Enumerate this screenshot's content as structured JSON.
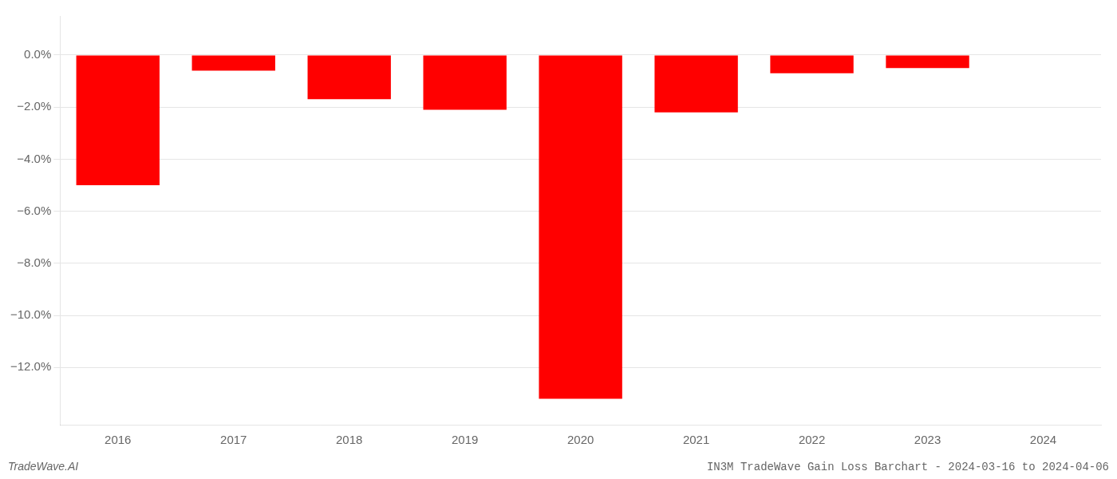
{
  "chart_data": {
    "type": "bar",
    "title": "IN3M TradeWave Gain Loss Barchart - 2024-03-16 to 2024-04-06",
    "annotations": [
      "TradeWave.AI"
    ],
    "categories": [
      "2016",
      "2017",
      "2018",
      "2019",
      "2020",
      "2021",
      "2022",
      "2023",
      "2024"
    ],
    "values": [
      -5.0,
      -0.6,
      -1.7,
      -2.1,
      -13.2,
      -2.2,
      -0.7,
      -0.5,
      0.0
    ],
    "color": "#ff0000",
    "ylim": [
      -14.2,
      1.5
    ],
    "yticks": [
      {
        "value": 0.0,
        "label": "0.0%"
      },
      {
        "value": -2.0,
        "label": "−2.0%"
      },
      {
        "value": -4.0,
        "label": "−4.0%"
      },
      {
        "value": -6.0,
        "label": "−6.0%"
      },
      {
        "value": -8.0,
        "label": "−8.0%"
      },
      {
        "value": -10.0,
        "label": "−10.0%"
      },
      {
        "value": -12.0,
        "label": "−12.0%"
      }
    ],
    "grid": true
  }
}
